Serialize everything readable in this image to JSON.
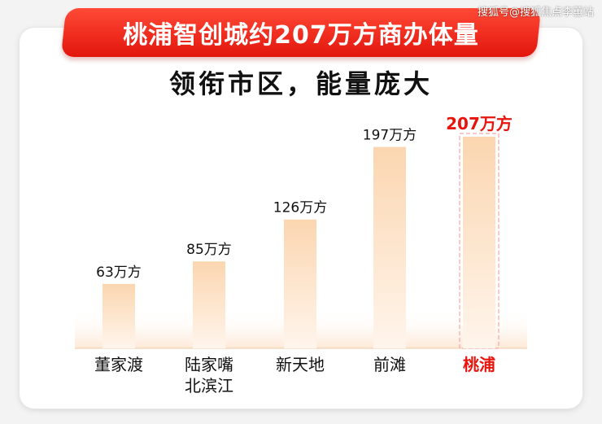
{
  "banner": {
    "title": "桃浦智创城约207万方商办体量"
  },
  "subtitle": "领衔市区，能量庞大",
  "watermark": "搜狐号@搜狐焦点李蕙站",
  "colors": {
    "accent": "#e8140c",
    "bar_top": "#fbd9b6",
    "bar_bottom": "#fff4ea",
    "label": "#111111"
  },
  "chart_data": {
    "type": "bar",
    "categories": [
      "董家渡",
      "陆家嘴\n北滨江",
      "新天地",
      "前滩",
      "桃浦"
    ],
    "values": [
      63,
      85,
      126,
      197,
      207
    ],
    "value_labels": [
      "63万方",
      "85万方",
      "126万方",
      "197万方",
      "207万方"
    ],
    "highlight_index": 4,
    "title": "",
    "xlabel": "",
    "ylabel": "",
    "ylim": [
      0,
      207
    ],
    "grid": false,
    "legend": "none"
  }
}
